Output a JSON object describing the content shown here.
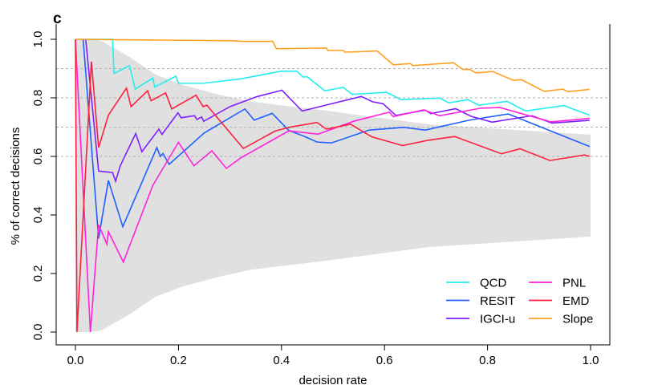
{
  "panel_label": "c",
  "chart_data": {
    "type": "line",
    "xlabel": "decision rate",
    "ylabel": "% of correct decisions",
    "xlim": [
      0,
      1
    ],
    "ylim": [
      0,
      1
    ],
    "xticks": [
      "0.0",
      "0.2",
      "0.4",
      "0.6",
      "0.8",
      "1.0"
    ],
    "yticks": [
      "0.0",
      "0.2",
      "0.4",
      "0.6",
      "0.8",
      "1.0"
    ],
    "reference_lines_y": [
      0.6,
      0.7,
      0.8,
      0.9
    ],
    "legend_placement": "bottom-right",
    "band": {
      "color": "#e0e0e0",
      "x": [
        0,
        0.03,
        0.05,
        0.103,
        0.155,
        0.207,
        0.279,
        0.341,
        0.48,
        0.684,
        1.0
      ],
      "upper": [
        1,
        1,
        0.995,
        0.942,
        0.88,
        0.845,
        0.811,
        0.787,
        0.758,
        0.71,
        0.674
      ],
      "lower": [
        0,
        0,
        0.005,
        0.058,
        0.12,
        0.155,
        0.189,
        0.213,
        0.242,
        0.29,
        0.326
      ]
    },
    "series": [
      {
        "name": "QCD",
        "color": "#22eeee",
        "x": [
          0,
          0.072,
          0.075,
          0.105,
          0.116,
          0.15,
          0.154,
          0.195,
          0.2,
          0.25,
          0.321,
          0.399,
          0.43,
          0.442,
          0.45,
          0.484,
          0.52,
          0.537,
          0.604,
          0.632,
          0.707,
          0.725,
          0.762,
          0.783,
          0.838,
          0.874,
          0.949,
          0.965,
          0.998
        ],
        "y": [
          1,
          1,
          0.883,
          0.91,
          0.83,
          0.867,
          0.837,
          0.874,
          0.85,
          0.85,
          0.865,
          0.891,
          0.891,
          0.871,
          0.872,
          0.824,
          0.836,
          0.812,
          0.819,
          0.794,
          0.799,
          0.783,
          0.794,
          0.775,
          0.788,
          0.755,
          0.774,
          0.762,
          0.741
        ]
      },
      {
        "name": "RESIT",
        "color": "#1f5fff",
        "x": [
          0.015,
          0.045,
          0.064,
          0.092,
          0.158,
          0.165,
          0.17,
          0.182,
          0.25,
          0.329,
          0.347,
          0.382,
          0.414,
          0.445,
          0.469,
          0.497,
          0.57,
          0.637,
          0.679,
          0.765,
          0.84,
          0.998
        ],
        "y": [
          1,
          0.32,
          0.518,
          0.36,
          0.63,
          0.6,
          0.61,
          0.573,
          0.68,
          0.762,
          0.724,
          0.747,
          0.689,
          0.668,
          0.649,
          0.646,
          0.69,
          0.699,
          0.69,
          0.724,
          0.745,
          0.634
        ]
      },
      {
        "name": "IGCI-u",
        "color": "#7f1fff",
        "x": [
          0.02,
          0.045,
          0.072,
          0.078,
          0.087,
          0.117,
          0.129,
          0.162,
          0.168,
          0.199,
          0.205,
          0.231,
          0.236,
          0.245,
          0.249,
          0.3,
          0.352,
          0.401,
          0.44,
          0.555,
          0.576,
          0.597,
          0.622,
          0.679,
          0.69,
          0.738,
          0.768,
          0.809,
          0.886,
          0.925,
          0.998
        ],
        "y": [
          1,
          0.55,
          0.545,
          0.515,
          0.568,
          0.678,
          0.616,
          0.693,
          0.675,
          0.749,
          0.732,
          0.739,
          0.726,
          0.735,
          0.72,
          0.77,
          0.804,
          0.826,
          0.755,
          0.805,
          0.787,
          0.78,
          0.74,
          0.758,
          0.746,
          0.763,
          0.737,
          0.717,
          0.739,
          0.714,
          0.723
        ]
      },
      {
        "name": "PNL",
        "color": "#ff22dd",
        "x": [
          0,
          0.029,
          0.045,
          0.061,
          0.064,
          0.093,
          0.15,
          0.2,
          0.23,
          0.265,
          0.293,
          0.321,
          0.414,
          0.471,
          0.54,
          0.609,
          0.617,
          0.676,
          0.707,
          0.788,
          0.824,
          0.923,
          0.998
        ],
        "y": [
          1,
          0,
          0.367,
          0.3,
          0.343,
          0.239,
          0.5,
          0.648,
          0.568,
          0.619,
          0.559,
          0.595,
          0.687,
          0.676,
          0.72,
          0.751,
          0.736,
          0.759,
          0.739,
          0.765,
          0.767,
          0.718,
          0.73
        ]
      },
      {
        "name": "EMD",
        "color": "#ff1f3f",
        "x": [
          0,
          0.003,
          0.031,
          0.045,
          0.064,
          0.099,
          0.108,
          0.14,
          0.147,
          0.175,
          0.187,
          0.234,
          0.248,
          0.255,
          0.326,
          0.388,
          0.417,
          0.469,
          0.487,
          0.534,
          0.575,
          0.635,
          0.684,
          0.736,
          0.827,
          0.863,
          0.921,
          0.988,
          0.998
        ],
        "y": [
          1,
          0,
          0.924,
          0.63,
          0.741,
          0.833,
          0.77,
          0.824,
          0.79,
          0.817,
          0.762,
          0.809,
          0.77,
          0.775,
          0.627,
          0.687,
          0.7,
          0.716,
          0.693,
          0.71,
          0.667,
          0.637,
          0.655,
          0.668,
          0.609,
          0.626,
          0.586,
          0.605,
          0.6
        ]
      },
      {
        "name": "Slope",
        "color": "#ffa020",
        "x": [
          0,
          0.305,
          0.321,
          0.383,
          0.39,
          0.487,
          0.49,
          0.52,
          0.523,
          0.586,
          0.617,
          0.65,
          0.655,
          0.734,
          0.752,
          0.765,
          0.778,
          0.81,
          0.822,
          0.85,
          0.866,
          0.91,
          0.946,
          0.956,
          0.998
        ],
        "y": [
          1,
          0.995,
          0.993,
          0.993,
          0.968,
          0.97,
          0.962,
          0.962,
          0.956,
          0.96,
          0.913,
          0.917,
          0.91,
          0.92,
          0.897,
          0.897,
          0.885,
          0.89,
          0.881,
          0.86,
          0.862,
          0.822,
          0.83,
          0.821,
          0.829
        ]
      }
    ]
  }
}
